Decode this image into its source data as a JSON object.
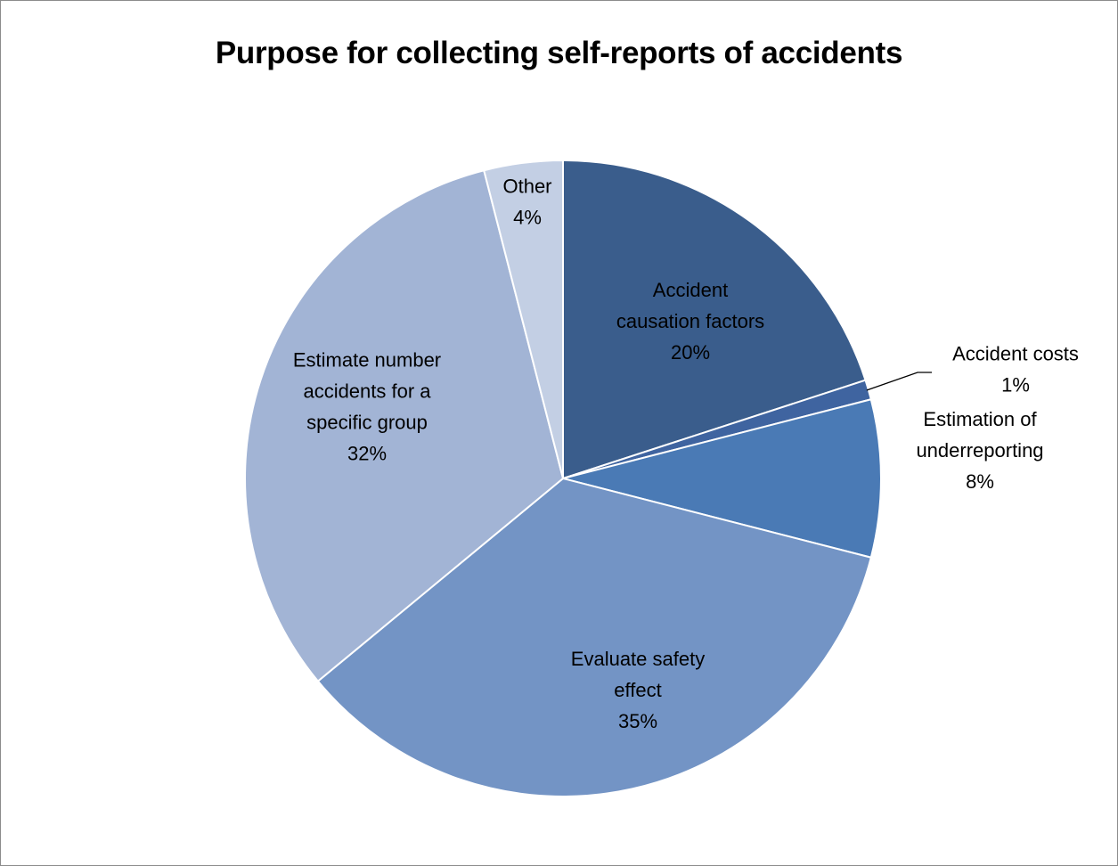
{
  "chart_data": {
    "type": "pie",
    "title": "Purpose for collecting self-reports of accidents",
    "start_angle_deg": 0,
    "direction": "clockwise",
    "slices": [
      {
        "label": [
          "Accident",
          "causation factors"
        ],
        "value": 20,
        "percent_label": "20%",
        "color": "#3a5d8c",
        "label_style": "inside"
      },
      {
        "label": [
          "Accident costs"
        ],
        "value": 1,
        "percent_label": "1%",
        "color": "#3f64a0",
        "label_style": "leader"
      },
      {
        "label": [
          "Estimation of",
          "underreporting"
        ],
        "value": 8,
        "percent_label": "8%",
        "color": "#4a7ab5",
        "label_style": "outside"
      },
      {
        "label": [
          "Evaluate safety",
          "effect"
        ],
        "value": 35,
        "percent_label": "35%",
        "color": "#7394c5",
        "label_style": "inside"
      },
      {
        "label": [
          "Estimate number",
          "accidents for a",
          "specific group"
        ],
        "value": 32,
        "percent_label": "32%",
        "color": "#a2b4d5",
        "label_style": "inside"
      },
      {
        "label": [
          "Other"
        ],
        "value": 4,
        "percent_label": "4%",
        "color": "#c3cfe4",
        "label_style": "inside"
      }
    ]
  }
}
